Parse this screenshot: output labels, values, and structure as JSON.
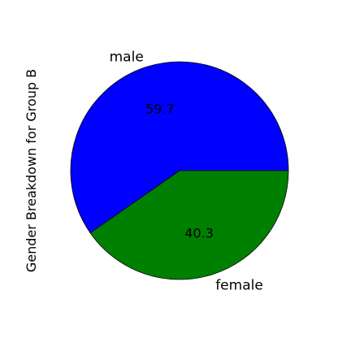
{
  "chart_data": {
    "type": "pie",
    "ylabel": "Gender Breakdown for Group B",
    "categories": [
      "male",
      "female"
    ],
    "values": [
      59.7,
      40.3
    ],
    "value_labels": [
      "59.7",
      "40.3"
    ],
    "colors": [
      "#0000ff",
      "#008000"
    ],
    "start_angle_deg": 0,
    "direction": "counterclockwise"
  }
}
